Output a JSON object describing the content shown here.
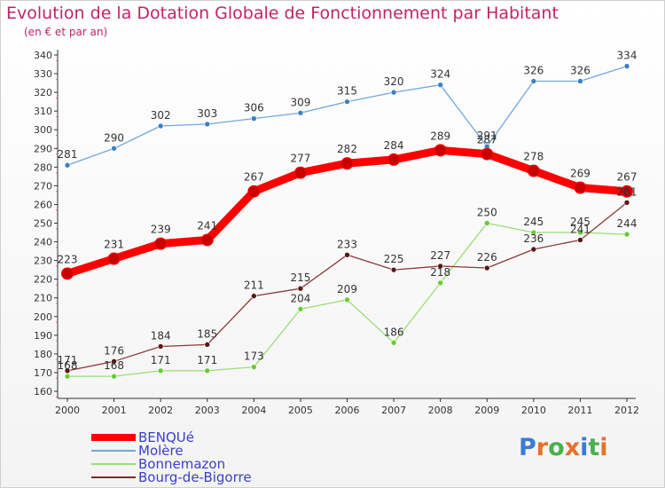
{
  "chart_data": {
    "type": "line",
    "title": "Evolution de la Dotation Globale de Fonctionnement par Habitant",
    "subtitle": "(en € et par an)",
    "x": [
      "2000",
      "2001",
      "2002",
      "2003",
      "2004",
      "2005",
      "2006",
      "2007",
      "2008",
      "2009",
      "2010",
      "2011",
      "2012"
    ],
    "ylim": [
      160,
      340
    ],
    "yticks": [
      160,
      170,
      180,
      190,
      200,
      210,
      220,
      230,
      240,
      250,
      260,
      270,
      280,
      290,
      300,
      310,
      320,
      330,
      340
    ],
    "grid": false,
    "legend_position": "bottom-left",
    "series": [
      {
        "name": "BENQUé",
        "color": "#ff0000",
        "values": [
          223,
          231,
          239,
          241,
          267,
          277,
          282,
          284,
          289,
          287,
          278,
          269,
          267
        ]
      },
      {
        "name": "Molère",
        "color": "#6fa8dc",
        "values": [
          281,
          290,
          302,
          303,
          306,
          309,
          315,
          320,
          324,
          291,
          326,
          326,
          334
        ]
      },
      {
        "name": "Bonnemazon",
        "color": "#99dd77",
        "values": [
          168,
          168,
          171,
          171,
          173,
          204,
          209,
          186,
          218,
          250,
          245,
          245,
          244
        ]
      },
      {
        "name": "Bourg-de-Bigorre",
        "color": "#7b2a2a",
        "values": [
          171,
          176,
          184,
          185,
          211,
          215,
          233,
          225,
          227,
          226,
          236,
          241,
          261
        ]
      }
    ]
  },
  "logo": {
    "text": "Proxiti",
    "colors": [
      "#3a7bd5",
      "#e8702a",
      "#4caf50",
      "#e8702a",
      "#3a7bd5",
      "#4caf50",
      "#e8702a"
    ]
  }
}
